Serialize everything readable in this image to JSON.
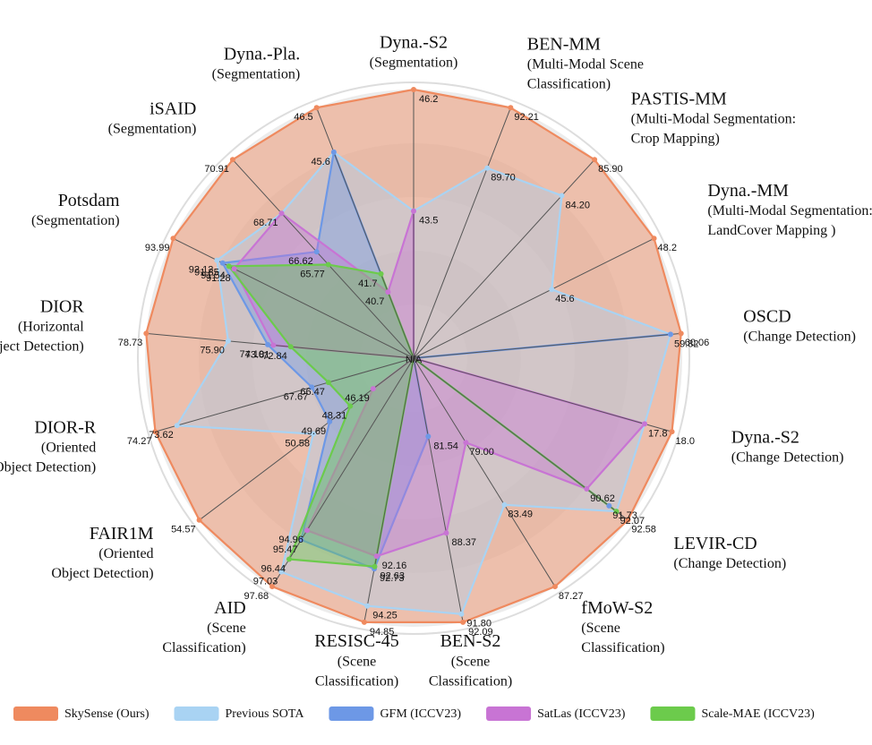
{
  "chart_data": {
    "type": "radar",
    "center_label": "N/A",
    "categories": [
      [
        "Dyna.-S2",
        "(Segmentation)"
      ],
      [
        "BEN-MM",
        "(Multi-Modal Scene",
        "Classification)"
      ],
      [
        "PASTIS-MM",
        "(Multi-Modal Segmentation:",
        "Crop Mapping)"
      ],
      [
        "Dyna.-MM",
        "(Multi-Modal Segmentation:",
        "LandCover Mapping )"
      ],
      [
        "OSCD",
        "(Change Detection)"
      ],
      [
        "Dyna.-S2",
        "(Change Detection)"
      ],
      [
        "LEVIR-CD",
        "(Change Detection)"
      ],
      [
        "fMoW-S2",
        "(Scene",
        "Classification)"
      ],
      [
        "BEN-S2",
        "(Scene",
        "Classification)"
      ],
      [
        "RESISC-45",
        "(Scene",
        "Classification)"
      ],
      [
        "AID",
        "(Scene",
        "Classification)"
      ],
      [
        "FAIR1M",
        "(Oriented",
        "Object Detection)"
      ],
      [
        "DIOR-R",
        "(Oriented",
        "Object Detection)"
      ],
      [
        "DIOR",
        "(Horizontal",
        "Object Detection)"
      ],
      [
        "Potsdam",
        "(Segmentation)"
      ],
      [
        "iSAID",
        "(Segmentation)"
      ],
      [
        "Dyna.-Pla.",
        "(Segmentation)"
      ]
    ],
    "series": [
      {
        "name": "SkySense (Ours)",
        "color": "#ef8a5f",
        "values": [
          46.2,
          92.21,
          85.9,
          48.2,
          60.06,
          18.0,
          92.58,
          87.27,
          92.09,
          94.85,
          97.68,
          54.57,
          74.27,
          78.73,
          93.99,
          70.91,
          46.5
        ],
        "value_labels": [
          "46.2",
          "92.21",
          "85.90",
          "48.2",
          "60.06",
          "18.0",
          "92.58",
          "87.27",
          "92.09",
          "94.85",
          "97.68",
          "54.57",
          "74.27",
          "78.73",
          "93.99",
          "70.91",
          "46.5"
        ]
      },
      {
        "name": "Previous SOTA",
        "color": "#a9d3f3",
        "values": [
          43.5,
          89.7,
          84.2,
          45.6,
          59.82,
          17.8,
          92.07,
          83.49,
          91.8,
          94.25,
          97.03,
          50.58,
          73.62,
          75.9,
          92.12,
          68.71,
          45.6
        ],
        "value_labels": [
          "43.5",
          "89.70",
          "84.20",
          "45.6",
          "59.82",
          "17.8",
          "92.07",
          "83.49",
          "91.80",
          "94.25",
          "97.03",
          "50.58",
          "73.62",
          "75.90",
          "92.12",
          "68.71",
          "45.6"
        ]
      },
      {
        "name": "GFM (ICCV23)",
        "color": "#6d98e6",
        "values": [
          null,
          null,
          null,
          null,
          59.82,
          null,
          91.73,
          null,
          81.54,
          92.73,
          95.47,
          49.69,
          67.67,
          74.1,
          91.85,
          66.62,
          45.6
        ],
        "value_labels": [
          null,
          null,
          null,
          null,
          "59.82",
          null,
          "91.73",
          null,
          "81.54",
          "92.73",
          "95.47",
          "49.69",
          "67.67",
          "74.10",
          "91.85",
          "66.62",
          "45.6"
        ]
      },
      {
        "name": "SatLas (ICCV23)",
        "color": "#c874d4",
        "values": [
          43.5,
          null,
          null,
          null,
          null,
          17.8,
          90.62,
          79.0,
          88.37,
          92.16,
          94.96,
          46.19,
          null,
          73.81,
          91.28,
          68.71,
          40.7
        ],
        "value_labels": [
          "43.5",
          null,
          null,
          null,
          null,
          "17.8",
          "90.62",
          "79.00",
          "88.37",
          "92.16",
          "94.96",
          "46.19",
          null,
          "73.81",
          "91.28",
          "68.71",
          "40.7"
        ]
      },
      {
        "name": "Scale-MAE (ICCV23)",
        "color": "#6ccb4c",
        "values": [
          null,
          null,
          null,
          null,
          null,
          null,
          92.07,
          null,
          null,
          92.63,
          96.44,
          48.31,
          66.47,
          72.84,
          91.54,
          65.77,
          41.7
        ],
        "value_labels": [
          null,
          null,
          null,
          null,
          null,
          null,
          "92.07",
          null,
          null,
          "92.63",
          "96.44",
          "48.31",
          "66.47",
          "72.84",
          "91.54",
          "65.77",
          "41.7"
        ]
      }
    ]
  }
}
